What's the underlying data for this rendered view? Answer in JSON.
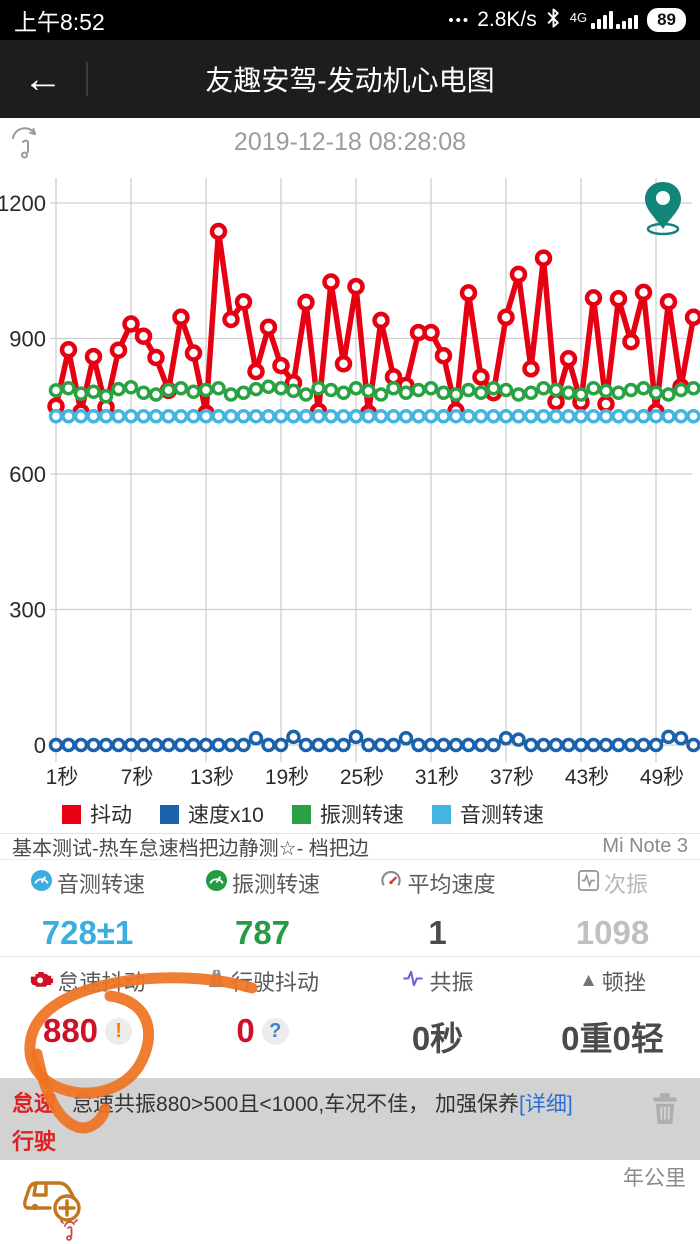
{
  "status_bar": {
    "time": "上午8:52",
    "dots": "•••",
    "net_speed": "2.8K/s",
    "network": "4G",
    "battery": "89"
  },
  "navbar": {
    "back_icon": "←",
    "title": "友趣安驾-发动机心电图"
  },
  "datetime": "2019-12-18 08:28:08",
  "chart_data": {
    "type": "line",
    "x_unit": "秒",
    "x_start": 1,
    "x_step": 1,
    "x_tick_positions": [
      1,
      7,
      13,
      19,
      25,
      31,
      37,
      43,
      49
    ],
    "x_tick_labels": [
      "1秒",
      "7秒",
      "13秒",
      "19秒",
      "25秒",
      "31秒",
      "37秒",
      "43秒",
      "49秒"
    ],
    "y_ticks": [
      0,
      300,
      600,
      900,
      1200
    ],
    "ylim": [
      0,
      1300
    ],
    "grid": true,
    "legend_position": "bottom",
    "series": [
      {
        "name": "抖动",
        "color": "#e60012",
        "values": [
          750,
          875,
          737,
          860,
          748,
          874,
          932,
          905,
          858,
          785,
          947,
          868,
          735,
          1137,
          942,
          981,
          827,
          925,
          840,
          802,
          980,
          739,
          1025,
          844,
          1015,
          735,
          940,
          815,
          796,
          913,
          913,
          862,
          740,
          1001,
          815,
          780,
          947,
          1042,
          833,
          1078,
          760,
          855,
          759,
          990,
          755,
          988,
          893,
          1002,
          738,
          981,
          793,
          947
        ]
      },
      {
        "name": "速度x10",
        "color": "#1b62ab",
        "values": [
          0,
          0,
          0,
          0,
          0,
          0,
          0,
          0,
          0,
          0,
          0,
          0,
          0,
          0,
          0,
          0,
          15,
          0,
          0,
          18,
          0,
          0,
          0,
          0,
          18,
          0,
          0,
          0,
          15,
          0,
          0,
          0,
          0,
          0,
          0,
          0,
          15,
          12,
          0,
          0,
          0,
          0,
          0,
          0,
          0,
          0,
          0,
          0,
          0,
          18,
          15,
          0
        ]
      },
      {
        "name": "振测转速",
        "color": "#2aa244",
        "values": [
          785,
          790,
          778,
          782,
          772,
          788,
          792,
          780,
          776,
          786,
          790,
          782,
          786,
          790,
          776,
          780,
          788,
          793,
          790,
          784,
          776,
          790,
          786,
          780,
          790,
          784,
          776,
          790,
          780,
          786,
          790,
          780,
          776,
          786,
          780,
          790,
          786,
          776,
          780,
          790,
          786,
          780,
          776,
          790,
          784,
          780,
          786,
          790,
          780,
          776,
          786,
          790
        ]
      },
      {
        "name": "音测转速",
        "color": "#45b4e0",
        "values": [
          728,
          728,
          728,
          728,
          728,
          728,
          728,
          728,
          728,
          728,
          728,
          728,
          728,
          728,
          728,
          728,
          728,
          728,
          728,
          728,
          728,
          728,
          728,
          728,
          728,
          728,
          728,
          728,
          728,
          728,
          728,
          728,
          728,
          728,
          728,
          728,
          728,
          728,
          728,
          728,
          728,
          728,
          728,
          728,
          728,
          728,
          728,
          728,
          728,
          728,
          728,
          728
        ]
      }
    ]
  },
  "report": {
    "test_name": "基本测试-热车怠速档把边静测☆- 档把边",
    "device": "Mi Note 3",
    "stats": [
      {
        "label": "音测转速",
        "value": "728±1",
        "value_color": "#3badde",
        "icon": "gauge-cyan"
      },
      {
        "label": "振测转速",
        "value": "787",
        "value_color": "#279b44",
        "icon": "gauge-green"
      },
      {
        "label": "平均速度",
        "value": "1",
        "value_color": "#4a4a4a",
        "icon": "speedometer"
      },
      {
        "label": "次振",
        "value": "1098",
        "value_color": "#c0c0c0",
        "icon": "wave-box"
      },
      {
        "label": "怠速抖动",
        "value": "880",
        "badge": "!",
        "value_color": "#ce1126",
        "icon": "engine"
      },
      {
        "label": "行驶抖动",
        "value": "0",
        "badge": "?",
        "value_color": "#ce1126",
        "icon": "road"
      },
      {
        "label": "共振",
        "value": "0秒",
        "value_color": "#4a4a4a",
        "icon": "pulse"
      },
      {
        "label": "顿挫",
        "value": "0重0轻",
        "value_color": "#4a4a4a",
        "icon": "triangle"
      }
    ]
  },
  "alerts": {
    "rows": [
      {
        "tag": "怠速",
        "message": "怠速共振880>500且<1000,车况不佳， 加强保养",
        "link": "[详细]"
      },
      {
        "tag": "行驶",
        "message": "",
        "link": ""
      }
    ]
  },
  "footer": {
    "year_km_label": "年公里"
  },
  "colors": {
    "annotation": "#ee7322",
    "alert_bg": "#d2d2d2",
    "pin": "#12857a",
    "car_icon": "#c2771e"
  }
}
